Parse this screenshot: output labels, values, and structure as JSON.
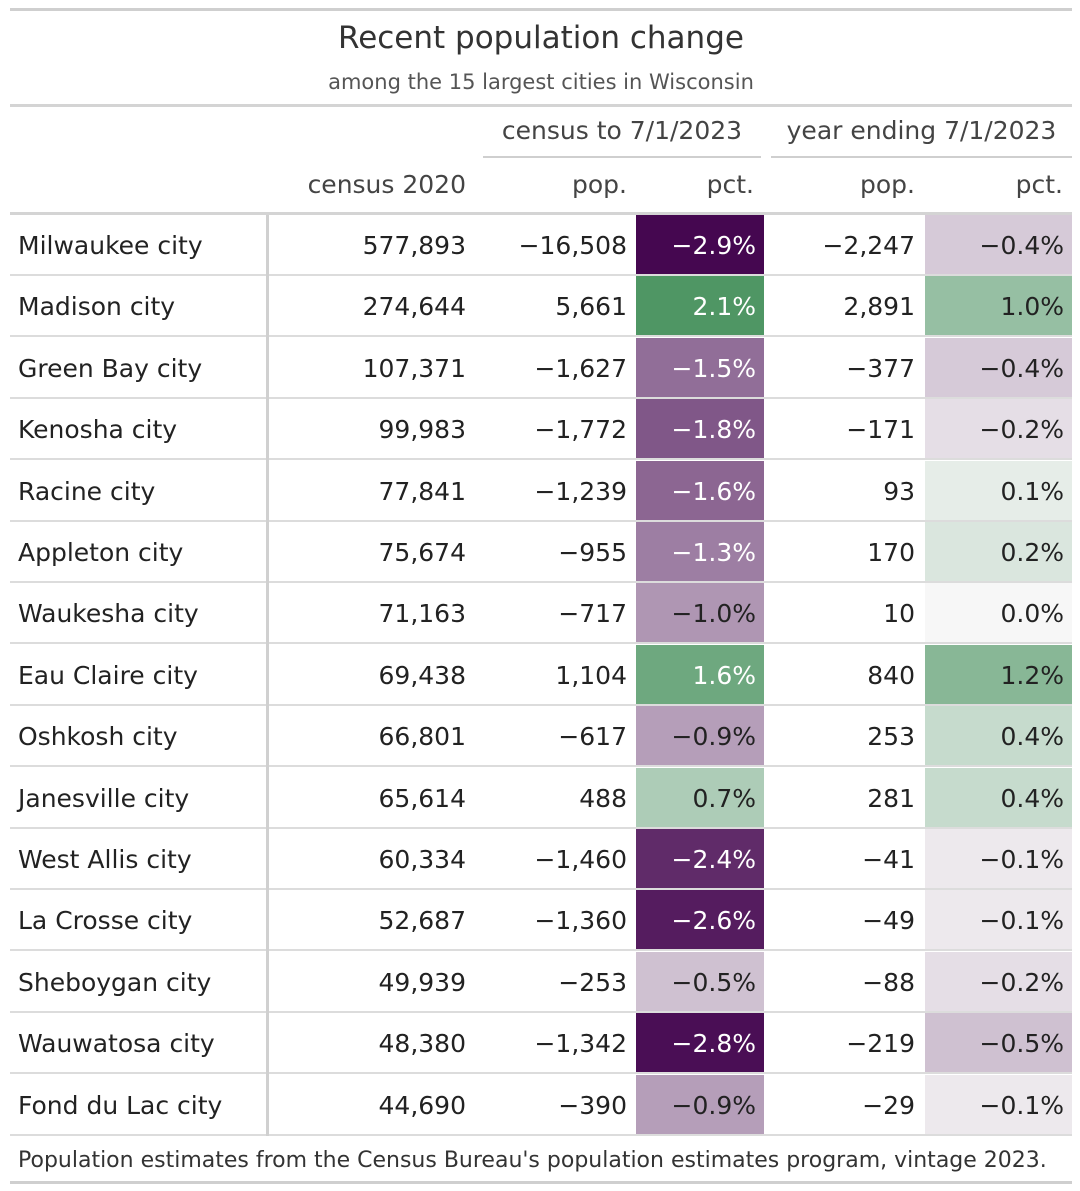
{
  "chart_data": {
    "type": "table",
    "title": "Recent population change",
    "subtitle": "among the 15 largest cities in Wisconsin",
    "spanners": [
      "census to 7/1/2023",
      "year ending 7/1/2023"
    ],
    "columns": [
      "census 2020",
      "pop.",
      "pct.",
      "pop.",
      "pct."
    ],
    "rows": [
      {
        "city": "Milwaukee city",
        "census2020": "577,893",
        "pop_since": "−16,508",
        "pct_since": "−2.9%",
        "pct_since_value": -2.9,
        "pop_year": "−2,247",
        "pct_year": "−0.4%",
        "pct_year_value": -0.4
      },
      {
        "city": "Madison city",
        "census2020": "274,644",
        "pop_since": "5,661",
        "pct_since": "2.1%",
        "pct_since_value": 2.1,
        "pop_year": "2,891",
        "pct_year": "1.0%",
        "pct_year_value": 1.0
      },
      {
        "city": "Green Bay city",
        "census2020": "107,371",
        "pop_since": "−1,627",
        "pct_since": "−1.5%",
        "pct_since_value": -1.5,
        "pop_year": "−377",
        "pct_year": "−0.4%",
        "pct_year_value": -0.4
      },
      {
        "city": "Kenosha city",
        "census2020": "99,983",
        "pop_since": "−1,772",
        "pct_since": "−1.8%",
        "pct_since_value": -1.8,
        "pop_year": "−171",
        "pct_year": "−0.2%",
        "pct_year_value": -0.2
      },
      {
        "city": "Racine city",
        "census2020": "77,841",
        "pop_since": "−1,239",
        "pct_since": "−1.6%",
        "pct_since_value": -1.6,
        "pop_year": "93",
        "pct_year": "0.1%",
        "pct_year_value": 0.1
      },
      {
        "city": "Appleton city",
        "census2020": "75,674",
        "pop_since": "−955",
        "pct_since": "−1.3%",
        "pct_since_value": -1.3,
        "pop_year": "170",
        "pct_year": "0.2%",
        "pct_year_value": 0.2
      },
      {
        "city": "Waukesha city",
        "census2020": "71,163",
        "pop_since": "−717",
        "pct_since": "−1.0%",
        "pct_since_value": -1.0,
        "pop_year": "10",
        "pct_year": "0.0%",
        "pct_year_value": 0.0
      },
      {
        "city": "Eau Claire city",
        "census2020": "69,438",
        "pop_since": "1,104",
        "pct_since": "1.6%",
        "pct_since_value": 1.6,
        "pop_year": "840",
        "pct_year": "1.2%",
        "pct_year_value": 1.2
      },
      {
        "city": "Oshkosh city",
        "census2020": "66,801",
        "pop_since": "−617",
        "pct_since": "−0.9%",
        "pct_since_value": -0.9,
        "pop_year": "253",
        "pct_year": "0.4%",
        "pct_year_value": 0.4
      },
      {
        "city": "Janesville city",
        "census2020": "65,614",
        "pop_since": "488",
        "pct_since": "0.7%",
        "pct_since_value": 0.7,
        "pop_year": "281",
        "pct_year": "0.4%",
        "pct_year_value": 0.4
      },
      {
        "city": "West Allis city",
        "census2020": "60,334",
        "pop_since": "−1,460",
        "pct_since": "−2.4%",
        "pct_since_value": -2.4,
        "pop_year": "−41",
        "pct_year": "−0.1%",
        "pct_year_value": -0.1
      },
      {
        "city": "La Crosse city",
        "census2020": "52,687",
        "pop_since": "−1,360",
        "pct_since": "−2.6%",
        "pct_since_value": -2.6,
        "pop_year": "−49",
        "pct_year": "−0.1%",
        "pct_year_value": -0.1
      },
      {
        "city": "Sheboygan city",
        "census2020": "49,939",
        "pop_since": "−253",
        "pct_since": "−0.5%",
        "pct_since_value": -0.5,
        "pop_year": "−88",
        "pct_year": "−0.2%",
        "pct_year_value": -0.2
      },
      {
        "city": "Wauwatosa city",
        "census2020": "48,380",
        "pop_since": "−1,342",
        "pct_since": "−2.8%",
        "pct_since_value": -2.8,
        "pop_year": "−219",
        "pct_year": "−0.5%",
        "pct_year_value": -0.5
      },
      {
        "city": "Fond du Lac city",
        "census2020": "44,690",
        "pop_since": "−390",
        "pct_since": "−0.9%",
        "pct_since_value": -0.9,
        "pop_year": "−29",
        "pct_year": "−0.1%",
        "pct_year_value": -0.1
      }
    ],
    "color_scale": {
      "negative_max": "#40004b",
      "positive_max": "#1b7837",
      "neutral": "#f7f7f7",
      "domain": [
        -3,
        3
      ]
    },
    "footnote": "Population estimates from the Census Bureau's population estimates program, vintage 2023."
  }
}
